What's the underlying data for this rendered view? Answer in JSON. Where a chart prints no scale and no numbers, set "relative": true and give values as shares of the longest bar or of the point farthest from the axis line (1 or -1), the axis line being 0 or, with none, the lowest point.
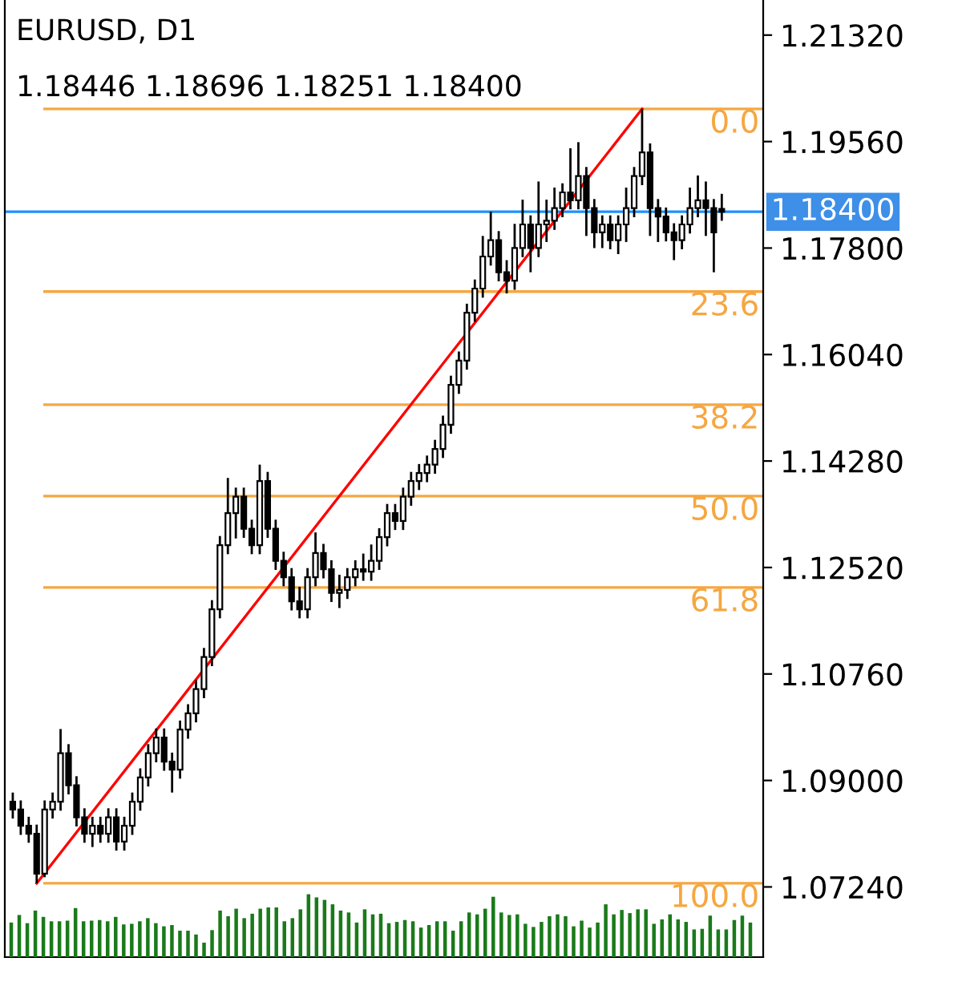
{
  "chart_data": [
    {
      "type": "candlestick",
      "title": "EURUSD, D1",
      "subtitle": "1.18446 1.18696 1.18251 1.18400",
      "categories": [
        null,
        null,
        null,
        null,
        null,
        null,
        null,
        null,
        null,
        null,
        null,
        null,
        null,
        null,
        null,
        null,
        null,
        null,
        null,
        null,
        null,
        null,
        null,
        null,
        null,
        null,
        null,
        null,
        null,
        null,
        null,
        null,
        null,
        null,
        null,
        null,
        null,
        null,
        null,
        null,
        null,
        null,
        null,
        null,
        null,
        null,
        null,
        null,
        null,
        null,
        null,
        null,
        null,
        null,
        null,
        null,
        null,
        null,
        null,
        null,
        null,
        null,
        null,
        null,
        null,
        null,
        null,
        null,
        null,
        null,
        null,
        null,
        null,
        null,
        null,
        null,
        null,
        null,
        null,
        null,
        null,
        null,
        null,
        null,
        null,
        null,
        null,
        null,
        null,
        null
      ],
      "ohlc": [
        [
          1.0865,
          1.088,
          1.0837,
          1.0852
        ],
        [
          1.0852,
          1.0867,
          1.081,
          1.0825
        ],
        [
          1.0825,
          1.084,
          1.0797,
          1.0812
        ],
        [
          1.0812,
          1.0827,
          1.073,
          1.0746
        ],
        [
          1.0746,
          1.0867,
          1.074,
          1.0852
        ],
        [
          1.0852,
          1.088,
          1.0837,
          1.0865
        ],
        [
          1.0865,
          1.0985,
          1.085,
          1.0945
        ],
        [
          1.0945,
          1.096,
          1.0877,
          1.0892
        ],
        [
          1.0892,
          1.0907,
          1.0824,
          1.0839
        ],
        [
          1.0839,
          1.0854,
          1.0797,
          1.0812
        ],
        [
          1.0812,
          1.084,
          1.079,
          1.0825
        ],
        [
          1.0825,
          1.084,
          1.0797,
          1.0812
        ],
        [
          1.0812,
          1.0854,
          1.0797,
          1.0839
        ],
        [
          1.0839,
          1.0854,
          1.0784,
          1.0799
        ],
        [
          1.0799,
          1.084,
          1.0784,
          1.0825
        ],
        [
          1.0825,
          1.088,
          1.081,
          1.0865
        ],
        [
          1.0865,
          1.092,
          1.085,
          1.0905
        ],
        [
          1.0905,
          1.096,
          1.089,
          1.0945
        ],
        [
          1.0945,
          1.0986,
          1.093,
          1.0971
        ],
        [
          1.0971,
          1.0986,
          1.0916,
          1.0931
        ],
        [
          1.0931,
          1.0946,
          1.088,
          1.0918
        ],
        [
          1.0918,
          1.0999,
          1.0903,
          1.0984
        ],
        [
          1.0984,
          1.1026,
          1.0969,
          1.1011
        ],
        [
          1.1011,
          1.1066,
          1.0996,
          1.1051
        ],
        [
          1.1051,
          1.1119,
          1.1036,
          1.1104
        ],
        [
          1.1104,
          1.1198,
          1.1089,
          1.1183
        ],
        [
          1.1183,
          1.1304,
          1.1168,
          1.1289
        ],
        [
          1.1289,
          1.14,
          1.1274,
          1.1342
        ],
        [
          1.1342,
          1.1384,
          1.13,
          1.1369
        ],
        [
          1.1369,
          1.1384,
          1.1301,
          1.1316
        ],
        [
          1.1316,
          1.1331,
          1.1274,
          1.1289
        ],
        [
          1.1289,
          1.1422,
          1.1274,
          1.1395
        ],
        [
          1.1395,
          1.141,
          1.1301,
          1.1316
        ],
        [
          1.1316,
          1.1331,
          1.1248,
          1.1263
        ],
        [
          1.1263,
          1.1278,
          1.1221,
          1.1236
        ],
        [
          1.1236,
          1.1251,
          1.1181,
          1.1196
        ],
        [
          1.1196,
          1.122,
          1.1168,
          1.1183
        ],
        [
          1.1183,
          1.1251,
          1.1168,
          1.1236
        ],
        [
          1.1236,
          1.131,
          1.1221,
          1.1276
        ],
        [
          1.1276,
          1.1291,
          1.1234,
          1.1249
        ],
        [
          1.1249,
          1.1264,
          1.1195,
          1.121
        ],
        [
          1.121,
          1.124,
          1.1185,
          1.1215
        ],
        [
          1.1215,
          1.1251,
          1.12,
          1.1236
        ],
        [
          1.1236,
          1.1264,
          1.1221,
          1.1249
        ],
        [
          1.1249,
          1.1275,
          1.123,
          1.1245
        ],
        [
          1.1245,
          1.129,
          1.123,
          1.1263
        ],
        [
          1.1263,
          1.1317,
          1.1248,
          1.1302
        ],
        [
          1.1302,
          1.1357,
          1.1287,
          1.1342
        ],
        [
          1.1342,
          1.1357,
          1.1314,
          1.1329
        ],
        [
          1.1329,
          1.1384,
          1.1314,
          1.1369
        ],
        [
          1.1369,
          1.141,
          1.1354,
          1.1395
        ],
        [
          1.1395,
          1.1423,
          1.138,
          1.1408
        ],
        [
          1.1408,
          1.1437,
          1.1393,
          1.1422
        ],
        [
          1.1422,
          1.1463,
          1.1407,
          1.1448
        ],
        [
          1.1448,
          1.1503,
          1.1433,
          1.1488
        ],
        [
          1.1488,
          1.1569,
          1.1473,
          1.1554
        ],
        [
          1.1554,
          1.1609,
          1.1539,
          1.1594
        ],
        [
          1.1594,
          1.1688,
          1.1579,
          1.1673
        ],
        [
          1.1673,
          1.1728,
          1.1658,
          1.1713
        ],
        [
          1.1713,
          1.18,
          1.1698,
          1.1766
        ],
        [
          1.1766,
          1.184,
          1.1751,
          1.1793
        ],
        [
          1.1793,
          1.1808,
          1.1725,
          1.174
        ],
        [
          1.174,
          1.176,
          1.1705,
          1.1726
        ],
        [
          1.1726,
          1.182,
          1.1711,
          1.178
        ],
        [
          1.178,
          1.186,
          1.1765,
          1.1819
        ],
        [
          1.1819,
          1.1834,
          1.174,
          1.178
        ],
        [
          1.178,
          1.189,
          1.1765,
          1.1819
        ],
        [
          1.1819,
          1.186,
          1.179,
          1.1825
        ],
        [
          1.1825,
          1.188,
          1.181,
          1.1846
        ],
        [
          1.1846,
          1.1887,
          1.1831,
          1.1872
        ],
        [
          1.1872,
          1.1945,
          1.1844,
          1.1859
        ],
        [
          1.1859,
          1.1955,
          1.1844,
          1.1899
        ],
        [
          1.1899,
          1.1914,
          1.18,
          1.1846
        ],
        [
          1.1846,
          1.1861,
          1.178,
          1.1806
        ],
        [
          1.1806,
          1.1834,
          1.178,
          1.1819
        ],
        [
          1.1819,
          1.1834,
          1.1778,
          1.1793
        ],
        [
          1.1793,
          1.1834,
          1.177,
          1.1819
        ],
        [
          1.1819,
          1.188,
          1.179,
          1.1846
        ],
        [
          1.1846,
          1.1914,
          1.1831,
          1.1899
        ],
        [
          1.1899,
          1.201,
          1.1884,
          1.1938
        ],
        [
          1.1938,
          1.1953,
          1.18,
          1.1846
        ],
        [
          1.1846,
          1.1861,
          1.179,
          1.1832
        ],
        [
          1.1832,
          1.1847,
          1.1791,
          1.1806
        ],
        [
          1.1806,
          1.1821,
          1.176,
          1.1793
        ],
        [
          1.1793,
          1.1834,
          1.1778,
          1.1819
        ],
        [
          1.1819,
          1.188,
          1.1804,
          1.1846
        ],
        [
          1.1846,
          1.19,
          1.1831,
          1.1859
        ],
        [
          1.1859,
          1.189,
          1.18,
          1.1846
        ],
        [
          1.1846,
          1.1861,
          1.174,
          1.1806
        ],
        [
          1.18446,
          1.18696,
          1.18251,
          1.184
        ]
      ],
      "series": [
        {
          "type": "line",
          "color": "#ff0000",
          "values": [
            null,
            null,
            null,
            1.073,
            null,
            null,
            null,
            null,
            null,
            null,
            null,
            null,
            null,
            null,
            null,
            null,
            null,
            null,
            null,
            null,
            null,
            null,
            null,
            null,
            null,
            null,
            null,
            null,
            null,
            null,
            null,
            null,
            null,
            null,
            null,
            null,
            null,
            null,
            null,
            null,
            null,
            null,
            null,
            null,
            null,
            null,
            null,
            null,
            null,
            null,
            null,
            null,
            null,
            null,
            null,
            null,
            null,
            null,
            null,
            null,
            null,
            null,
            null,
            null,
            null,
            null,
            null,
            null,
            null,
            null,
            null,
            null,
            null,
            null,
            null,
            null,
            null,
            null,
            null,
            1.201,
            null,
            null,
            null,
            null,
            null,
            null,
            null,
            null,
            null,
            null
          ]
        }
      ],
      "ylim": [
        1.0608,
        1.219
      ],
      "yticks": [
        {
          "value": 1.0724,
          "label": "1.07240"
        },
        {
          "value": 1.09,
          "label": "1.09000"
        },
        {
          "value": 1.1076,
          "label": "1.10760"
        },
        {
          "value": 1.1252,
          "label": "1.12520"
        },
        {
          "value": 1.1428,
          "label": "1.14280"
        },
        {
          "value": 1.1604,
          "label": "1.16040"
        },
        {
          "value": 1.178,
          "label": "1.17800"
        },
        {
          "value": 1.1956,
          "label": "1.19560"
        },
        {
          "value": 1.2132,
          "label": "1.21320"
        }
      ],
      "ref_lines": [
        {
          "axis": "y",
          "value": 1.201,
          "color": "#f5a742"
        },
        {
          "axis": "y",
          "value": 1.1708,
          "color": "#f5a742"
        },
        {
          "axis": "y",
          "value": 1.1521,
          "color": "#f5a742"
        },
        {
          "axis": "y",
          "value": 1.137,
          "color": "#f5a742"
        },
        {
          "axis": "y",
          "value": 1.1219,
          "color": "#f5a742"
        },
        {
          "axis": "y",
          "value": 1.073,
          "color": "#f5a742"
        },
        {
          "axis": "y",
          "value": 1.184,
          "label": "1.18400",
          "color": "#1e90ff"
        }
      ],
      "annotations": [
        {
          "text": "0.0",
          "y": 1.201
        },
        {
          "text": "23.6",
          "y": 1.1708
        },
        {
          "text": "38.2",
          "y": 1.1521
        },
        {
          "text": "50.0",
          "y": 1.137
        },
        {
          "text": "61.8",
          "y": 1.1219
        },
        {
          "text": "100.0",
          "y": 1.073
        }
      ],
      "grid": false
    },
    {
      "type": "bar",
      "relative": true,
      "color": "#1a7a1a",
      "categories": [
        null,
        null,
        null,
        null,
        null,
        null,
        null,
        null,
        null,
        null,
        null,
        null,
        null,
        null,
        null,
        null,
        null,
        null,
        null,
        null,
        null,
        null,
        null,
        null,
        null,
        null,
        null,
        null,
        null,
        null,
        null,
        null,
        null,
        null,
        null,
        null,
        null,
        null,
        null,
        null,
        null,
        null,
        null,
        null,
        null,
        null,
        null,
        null,
        null,
        null,
        null,
        null,
        null,
        null,
        null,
        null,
        null,
        null,
        null,
        null,
        null,
        null,
        null,
        null,
        null,
        null,
        null,
        null,
        null,
        null,
        null,
        null,
        null,
        null,
        null,
        null,
        null,
        null,
        null,
        null,
        null,
        null,
        null,
        null,
        null,
        null,
        null,
        null,
        null,
        null,
        null,
        null,
        null
      ],
      "values": [
        0.55,
        0.67,
        0.54,
        0.74,
        0.64,
        0.57,
        0.57,
        0.58,
        0.78,
        0.57,
        0.58,
        0.59,
        0.57,
        0.64,
        0.52,
        0.53,
        0.57,
        0.62,
        0.54,
        0.49,
        0.51,
        0.42,
        0.42,
        0.36,
        0.23,
        0.43,
        0.74,
        0.65,
        0.77,
        0.62,
        0.69,
        0.77,
        0.79,
        0.79,
        0.57,
        0.62,
        0.76,
        1,
        0.95,
        0.91,
        0.84,
        0.74,
        0.71,
        0.55,
        0.76,
        0.68,
        0.69,
        0.54,
        0.56,
        0.59,
        0.57,
        0.47,
        0.51,
        0.57,
        0.57,
        0.42,
        0.57,
        0.71,
        0.68,
        0.77,
        0.96,
        0.71,
        0.67,
        0.68,
        0.53,
        0.48,
        0.56,
        0.65,
        0.68,
        0.65,
        0.49,
        0.58,
        0.47,
        0.55,
        0.84,
        0.68,
        0.75,
        0.7,
        0.76,
        0.76,
        0.53,
        0.6,
        0.68,
        0.6,
        0.56,
        0.44,
        0.45,
        0.66,
        0.44,
        0.44,
        0.59,
        0.66,
        0.55
      ]
    }
  ]
}
